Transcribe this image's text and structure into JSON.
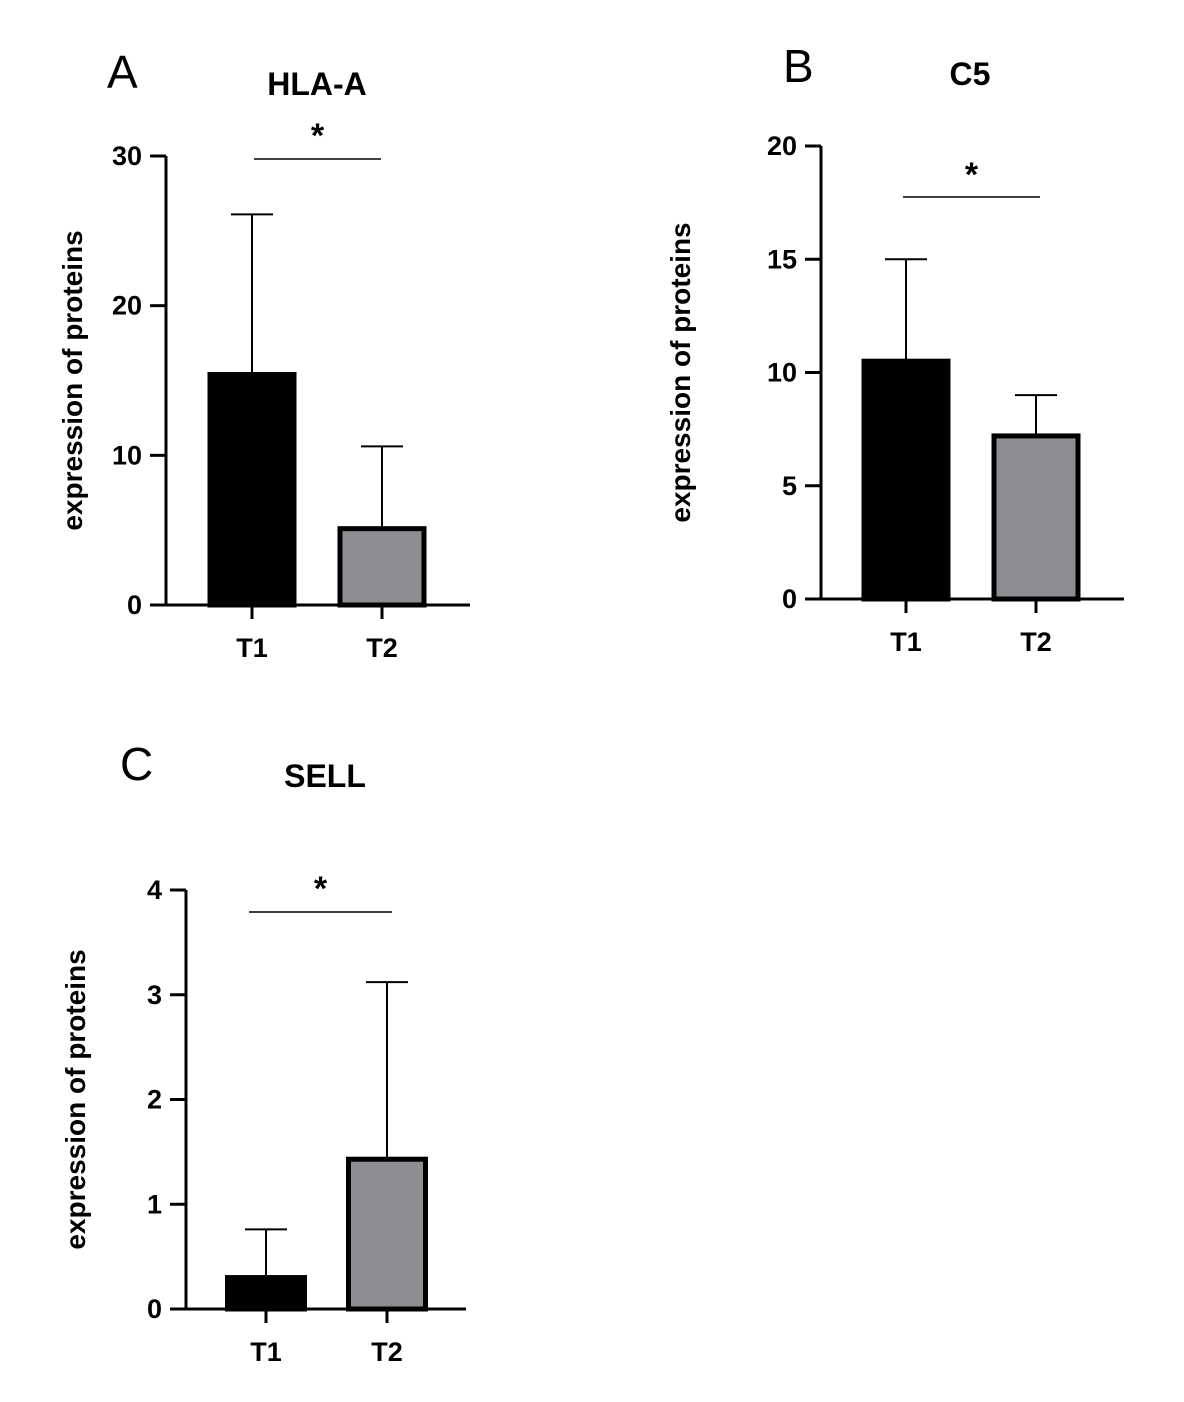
{
  "chart_data": [
    {
      "panel": "A",
      "type": "bar",
      "title": "HLA-A",
      "ylabel": "expression of proteins",
      "xlabel": "",
      "categories": [
        "T1",
        "T2"
      ],
      "values": [
        15.4,
        5.1
      ],
      "error_upper": [
        26.1,
        10.6
      ],
      "bar_colors": [
        "#000000",
        "#8e8e92"
      ],
      "ylim": [
        0,
        30
      ],
      "yticks": [
        0,
        10,
        20,
        30
      ],
      "significance": {
        "label": "*",
        "between": [
          "T1",
          "T2"
        ]
      },
      "grid": false,
      "legend": "none"
    },
    {
      "panel": "B",
      "type": "bar",
      "title": "C5",
      "ylabel": "expression of proteins",
      "xlabel": "",
      "categories": [
        "T1",
        "T2"
      ],
      "values": [
        10.5,
        7.2
      ],
      "error_upper": [
        15.0,
        9.0
      ],
      "bar_colors": [
        "#000000",
        "#8e8e92"
      ],
      "ylim": [
        0,
        20
      ],
      "yticks": [
        0,
        5,
        10,
        15,
        20
      ],
      "significance": {
        "label": "*",
        "between": [
          "T1",
          "T2"
        ]
      },
      "grid": false,
      "legend": "none"
    },
    {
      "panel": "C",
      "type": "bar",
      "title": "SELL",
      "ylabel": "expression of proteins",
      "xlabel": "",
      "categories": [
        "T1",
        "T2"
      ],
      "values": [
        0.3,
        1.43
      ],
      "error_upper": [
        0.76,
        3.12
      ],
      "bar_colors": [
        "#000000",
        "#8e8e92"
      ],
      "ylim": [
        0,
        4
      ],
      "yticks": [
        0,
        1,
        2,
        3,
        4
      ],
      "significance": {
        "label": "*",
        "between": [
          "T1",
          "T2"
        ]
      },
      "grid": false,
      "legend": "none"
    }
  ]
}
